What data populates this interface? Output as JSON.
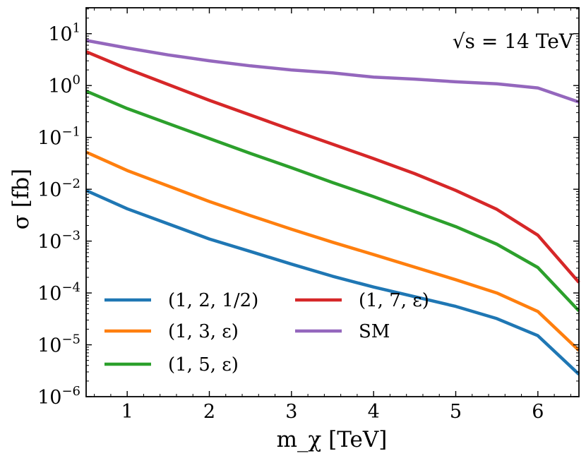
{
  "chart_data": {
    "type": "line",
    "title": "",
    "annotation": "√s = 14 TeV",
    "xlabel": "m_χ [TeV]",
    "ylabel": "σ [fb]",
    "xlim": [
      0.5,
      6.5
    ],
    "ylim_log10": [
      -6,
      1.5
    ],
    "yscale": "log",
    "grid": false,
    "legend_position": "lower-left",
    "x_ticks": [
      1,
      2,
      3,
      4,
      5,
      6
    ],
    "x_tick_labels": [
      "1",
      "2",
      "3",
      "4",
      "5",
      "6"
    ],
    "y_tick_exponents": [
      -6,
      -5,
      -4,
      -3,
      -2,
      -1,
      0,
      1
    ],
    "y_tick_labels": [
      "10",
      "10",
      "10",
      "10",
      "10",
      "10",
      "10",
      "10"
    ],
    "y_tick_label_exponents": [
      "−6",
      "−5",
      "−4",
      "−3",
      "−2",
      "−1",
      "0",
      "1"
    ],
    "series": [
      {
        "name": "(1, 2, 1/2)",
        "color": "#1f77b4",
        "x": [
          0.5,
          1.0,
          2.0,
          2.5,
          3.0,
          3.5,
          4.0,
          5.0,
          5.5,
          6.0,
          6.5
        ],
        "y": [
          0.0095,
          0.0042,
          0.0011,
          0.00063,
          0.00036,
          0.00021,
          0.00013,
          5.5e-05,
          3.2e-05,
          1.5e-05,
          2.7e-06
        ]
      },
      {
        "name": "(1, 3, ε)",
        "color": "#ff7f0e",
        "x": [
          0.5,
          1.0,
          2.0,
          2.5,
          3.0,
          3.5,
          4.0,
          5.0,
          5.5,
          6.0,
          6.5
        ],
        "y": [
          0.052,
          0.023,
          0.0058,
          0.0031,
          0.0017,
          0.00095,
          0.00055,
          0.00018,
          0.0001,
          4.4e-05,
          7.8e-06
        ]
      },
      {
        "name": "(1, 5, ε)",
        "color": "#2ca02c",
        "x": [
          0.5,
          1.0,
          2.0,
          2.5,
          3.0,
          3.5,
          4.0,
          5.0,
          5.5,
          6.0,
          6.5
        ],
        "y": [
          0.78,
          0.36,
          0.095,
          0.049,
          0.026,
          0.0135,
          0.0072,
          0.0019,
          0.00087,
          0.00031,
          4.5e-05
        ]
      },
      {
        "name": "(1, 7, ε)",
        "color": "#d62728",
        "x": [
          0.5,
          1.0,
          2.0,
          2.5,
          3.0,
          3.5,
          4.0,
          4.5,
          5.0,
          5.5,
          6.0,
          6.5
        ],
        "y": [
          4.5,
          2.1,
          0.52,
          0.27,
          0.14,
          0.074,
          0.039,
          0.02,
          0.0095,
          0.0041,
          0.0013,
          0.00016
        ]
      },
      {
        "name": "SM",
        "color": "#9467bd",
        "x": [
          0.5,
          1.0,
          1.5,
          2.0,
          2.5,
          3.0,
          3.5,
          4.0,
          4.5,
          5.0,
          5.5,
          6.0,
          6.5
        ],
        "y": [
          7.4,
          5.3,
          3.9,
          3.0,
          2.4,
          2.0,
          1.75,
          1.45,
          1.33,
          1.18,
          1.08,
          0.9,
          0.48
        ]
      }
    ]
  }
}
